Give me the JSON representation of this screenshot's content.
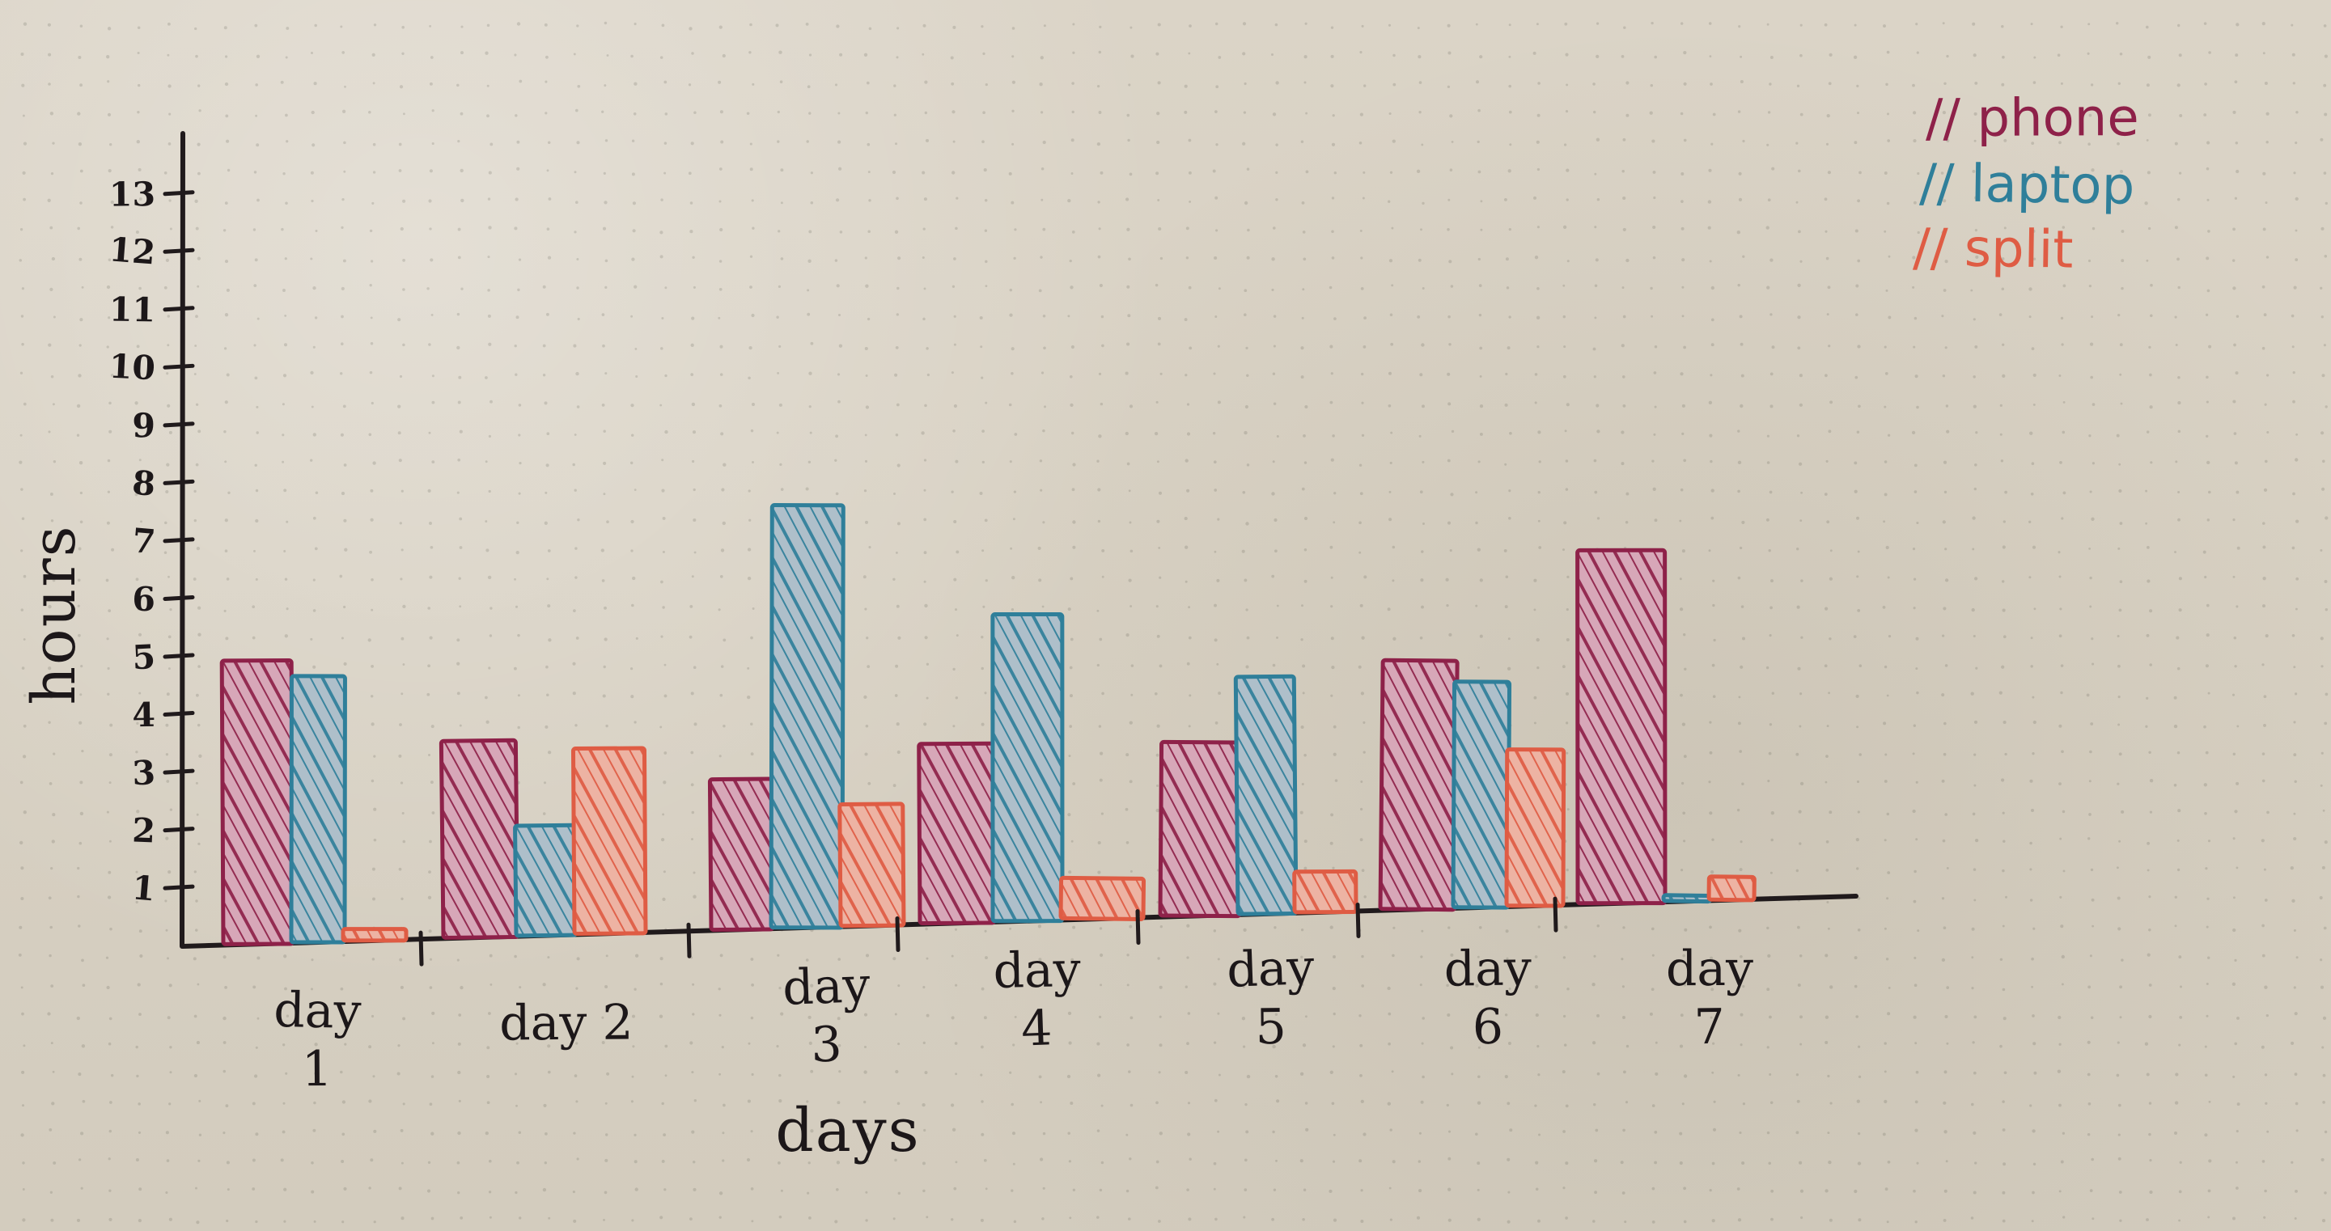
{
  "chart_data": {
    "type": "bar",
    "categories": [
      "day 1",
      "day 2",
      "day 3",
      "day 4",
      "day 5",
      "day 6",
      "day 7"
    ],
    "category_labels": [
      [
        "day",
        "1"
      ],
      [
        "day 2"
      ],
      [
        "day",
        "3"
      ],
      [
        "day",
        "4"
      ],
      [
        "day",
        "5"
      ],
      [
        "day",
        "6"
      ],
      [
        "day",
        "7"
      ]
    ],
    "series": [
      {
        "name": "phone",
        "values": [
          4.9,
          3.4,
          2.6,
          3.1,
          3.0,
          4.3,
          6.1
        ],
        "color": "#8e2149",
        "fill": "#d7a7b8"
      },
      {
        "name": "laptop",
        "values": [
          4.6,
          1.9,
          7.3,
          5.3,
          4.1,
          3.9,
          0.1
        ],
        "color": "#2f7f9a",
        "fill": "#aebfca"
      },
      {
        "name": "split",
        "values": [
          0.2,
          3.2,
          2.1,
          0.7,
          0.7,
          2.7,
          0.4
        ],
        "color": "#df5c44",
        "fill": "#edb3a3"
      }
    ],
    "legend_labels": [
      "// phone",
      "// laptop",
      "// split"
    ],
    "title": "",
    "xlabel": "days",
    "ylabel": "hours",
    "y_ticks": [
      1,
      2,
      3,
      4,
      5,
      6,
      7,
      8,
      9,
      10,
      11,
      12,
      13
    ],
    "y_tick_labels": [
      "1",
      "2",
      "3",
      "4",
      "5",
      "6",
      "7",
      "8",
      "9",
      "10",
      "11",
      "12",
      "13"
    ],
    "ylim": [
      0,
      13
    ],
    "grid": false,
    "legend_position": "top-right"
  }
}
